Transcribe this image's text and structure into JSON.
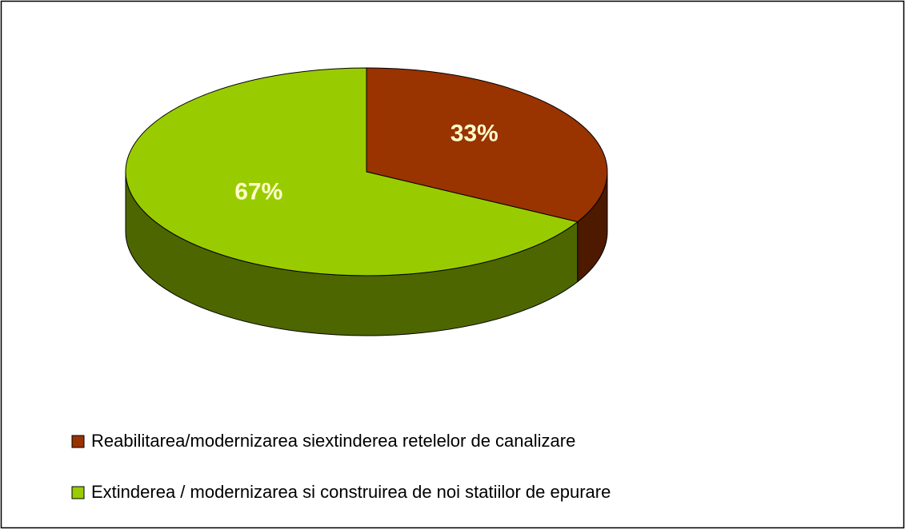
{
  "chart_data": {
    "type": "pie",
    "categories": [
      "Reabilitarea/modernizarea siextinderea retelelor de canalizare",
      "Extinderea / modernizarea si construirea de noi statiilor de epurare"
    ],
    "values": [
      33,
      67
    ],
    "value_labels": [
      "33%",
      "67%"
    ],
    "colors": [
      "#993300",
      "#99cc00"
    ],
    "legend": "bottom-left"
  }
}
